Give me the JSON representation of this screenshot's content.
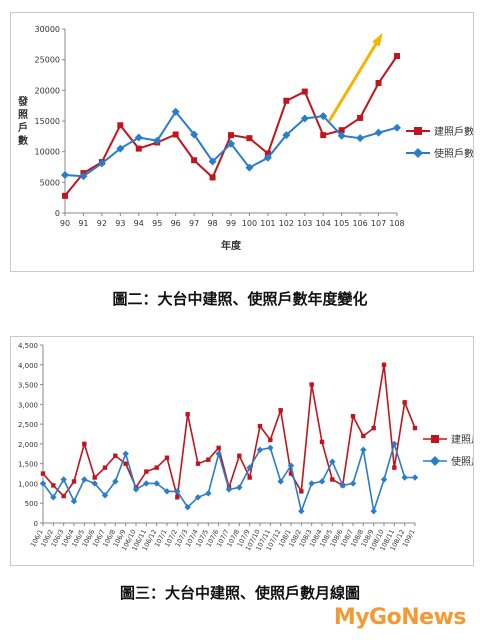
{
  "chart_data": [
    {
      "type": "line",
      "title": "",
      "xlabel": "年度",
      "ylabel": "發照戶數",
      "ylim": [
        0,
        30000
      ],
      "yticks": [
        "0",
        "5000",
        "10000",
        "15000",
        "20000",
        "25000",
        "30000"
      ],
      "categories": [
        "90",
        "91",
        "92",
        "93",
        "94",
        "95",
        "96",
        "97",
        "98",
        "99",
        "100",
        "101",
        "102",
        "103",
        "104",
        "105",
        "106",
        "107",
        "108"
      ],
      "series": [
        {
          "name": "建照戶數",
          "color": "#c0151c",
          "values": [
            2800,
            6500,
            8300,
            14300,
            10500,
            11500,
            12800,
            8600,
            5800,
            12700,
            12200,
            9700,
            18300,
            19800,
            12700,
            13500,
            15500,
            21200,
            25600
          ]
        },
        {
          "name": "使照戶數",
          "color": "#2a7dc9",
          "values": [
            6200,
            6000,
            8100,
            10500,
            12300,
            11800,
            16500,
            12800,
            8400,
            11300,
            7400,
            9000,
            12700,
            15400,
            15800,
            12600,
            12200,
            13100,
            13900
          ]
        }
      ],
      "legend": "right",
      "annotation": "up-arrow"
    },
    {
      "type": "line",
      "title": "",
      "ylim": [
        0,
        4500
      ],
      "yticks": [
        "0",
        "500",
        "1,000",
        "1,500",
        "2,000",
        "2,500",
        "3,000",
        "3,500",
        "4,000",
        "4,500"
      ],
      "categories": [
        "106/1",
        "106/2",
        "106/3",
        "106/4",
        "106/5",
        "106/6",
        "106/7",
        "106/8",
        "106/9",
        "106/10",
        "106/11",
        "106/12",
        "107/1",
        "107/2",
        "107/3",
        "107/4",
        "107/5",
        "107/6",
        "107/7",
        "107/8",
        "107/9",
        "107/10",
        "107/11",
        "107/12",
        "108/1",
        "108/2",
        "108/3",
        "108/4",
        "108/5",
        "108/6",
        "108/7",
        "108/8",
        "108/9",
        "108/10",
        "108/11",
        "108/12",
        "109/1"
      ],
      "series": [
        {
          "name": "建照戶數",
          "color": "#c0151c",
          "values": [
            1250,
            950,
            680,
            1050,
            2000,
            1150,
            1400,
            1700,
            1500,
            900,
            1300,
            1400,
            1650,
            650,
            2750,
            1500,
            1600,
            1900,
            900,
            1700,
            1150,
            2450,
            2100,
            2850,
            1250,
            800,
            3500,
            2050,
            1100,
            950,
            2700,
            2200,
            2400,
            4000,
            1400,
            3050,
            2400
          ]
        },
        {
          "name": "使照戶數",
          "color": "#2a7dc9",
          "values": [
            1000,
            650,
            1100,
            550,
            1100,
            1000,
            700,
            1050,
            1750,
            850,
            1000,
            1000,
            800,
            800,
            400,
            650,
            750,
            1750,
            850,
            900,
            1400,
            1850,
            1900,
            1050,
            1450,
            300,
            1000,
            1050,
            1550,
            950,
            1000,
            1850,
            300,
            1100,
            2000,
            1150,
            1150
          ]
        }
      ],
      "legend": "right"
    }
  ],
  "captions": {
    "fig2": "圖二：大台中建照、使照戶數年度變化",
    "fig3": "圖三：大台中建照、使照戶數月線圖"
  },
  "watermark": "MyGoNews"
}
